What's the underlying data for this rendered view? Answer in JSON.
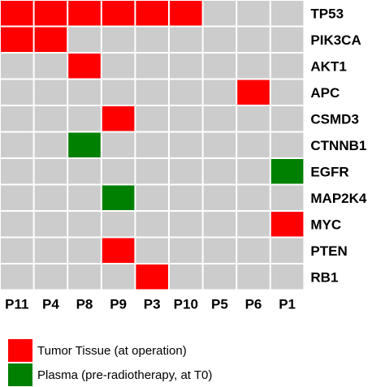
{
  "chart_data": {
    "type": "heatmap",
    "rows": [
      "TP53",
      "PIK3CA",
      "AKT1",
      "APC",
      "CSMD3",
      "CTNNB1",
      "EGFR",
      "MAP2K4",
      "MYC",
      "PTEN",
      "RB1"
    ],
    "columns": [
      "P11",
      "P4",
      "P8",
      "P9",
      "P3",
      "P10",
      "P5",
      "P6",
      "P1"
    ],
    "cells": [
      [
        "tumor",
        "tumor",
        "tumor",
        "tumor",
        "tumor",
        "tumor",
        "none",
        "none",
        "none"
      ],
      [
        "tumor",
        "tumor",
        "none",
        "none",
        "none",
        "none",
        "none",
        "none",
        "none"
      ],
      [
        "none",
        "none",
        "tumor",
        "none",
        "none",
        "none",
        "none",
        "none",
        "none"
      ],
      [
        "none",
        "none",
        "none",
        "none",
        "none",
        "none",
        "none",
        "tumor",
        "none"
      ],
      [
        "none",
        "none",
        "none",
        "tumor",
        "none",
        "none",
        "none",
        "none",
        "none"
      ],
      [
        "none",
        "none",
        "plasma",
        "none",
        "none",
        "none",
        "none",
        "none",
        "none"
      ],
      [
        "none",
        "none",
        "none",
        "none",
        "none",
        "none",
        "none",
        "none",
        "plasma"
      ],
      [
        "none",
        "none",
        "none",
        "plasma",
        "none",
        "none",
        "none",
        "none",
        "none"
      ],
      [
        "none",
        "none",
        "none",
        "none",
        "none",
        "none",
        "none",
        "none",
        "tumor"
      ],
      [
        "none",
        "none",
        "none",
        "tumor",
        "none",
        "none",
        "none",
        "none",
        "none"
      ],
      [
        "none",
        "none",
        "none",
        "none",
        "tumor",
        "none",
        "none",
        "none",
        "none"
      ]
    ],
    "categories": {
      "tumor": {
        "label": "Tumor Tissue (at operation)",
        "color": "#ff0000"
      },
      "plasma": {
        "label": "Plasma (pre-radiotherapy, at T0)",
        "color": "#008000"
      },
      "none": {
        "color": "#cccccc"
      }
    },
    "legend_position": "bottom-left"
  }
}
